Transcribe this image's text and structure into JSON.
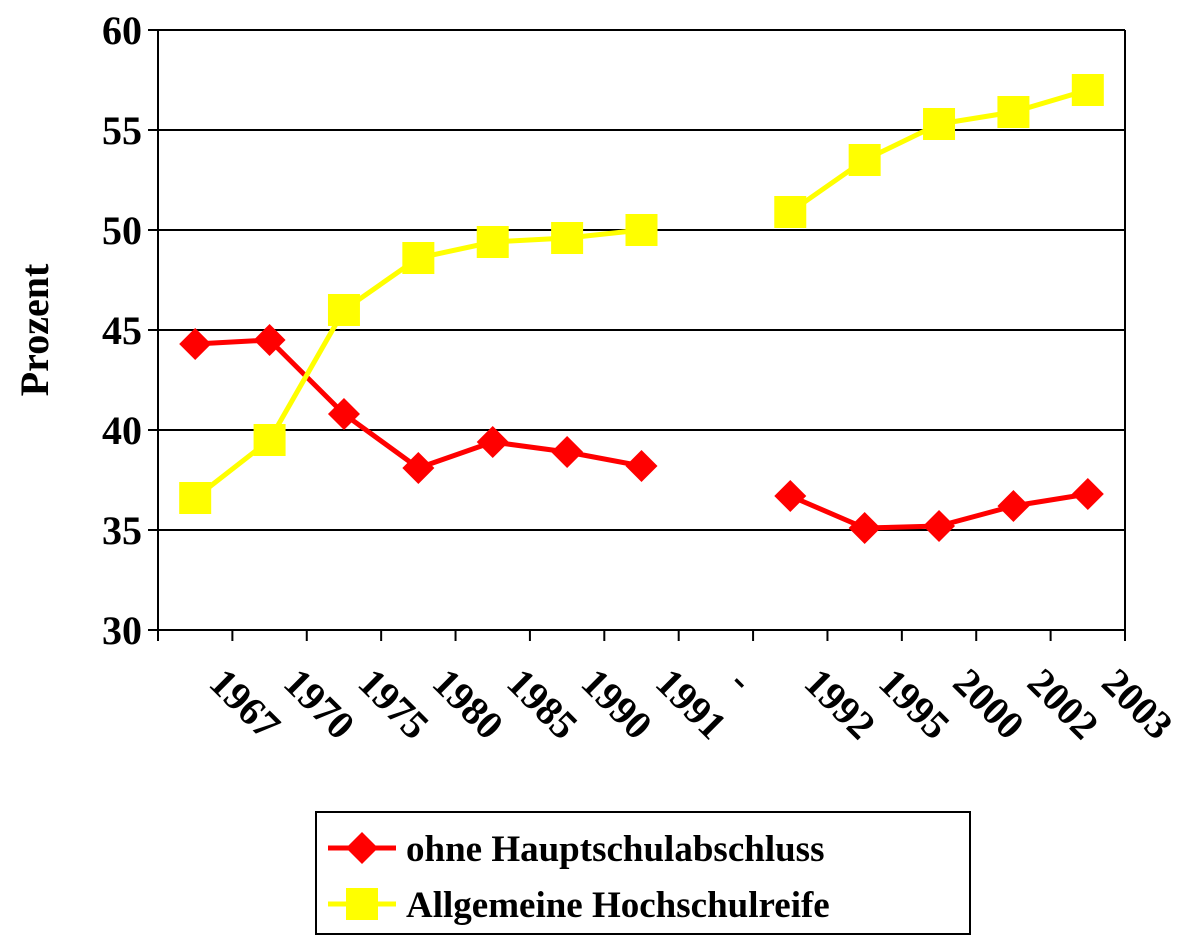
{
  "chart_data": {
    "type": "line",
    "title": "",
    "xlabel": "",
    "ylabel": "Prozent",
    "ylim": [
      30,
      60
    ],
    "yticks": [
      30,
      35,
      40,
      45,
      50,
      55,
      60
    ],
    "grid": true,
    "legend_position": "bottom",
    "categories": [
      "1967",
      "1970",
      "1975",
      "1980",
      "1985",
      "1990",
      "1991",
      "-",
      "1992",
      "1995",
      "2000",
      "2002",
      "2003"
    ],
    "series": [
      {
        "name": "ohne Hauptschulabschluss",
        "color": "#ff0000",
        "marker": "diamond",
        "values": [
          44.3,
          44.5,
          40.8,
          38.1,
          39.4,
          38.9,
          38.2,
          null,
          36.7,
          35.1,
          35.2,
          36.2,
          36.8
        ]
      },
      {
        "name": "Allgemeine Hochschulreife",
        "color": "#ffff00",
        "marker": "square",
        "values": [
          36.6,
          39.5,
          46.0,
          48.6,
          49.4,
          49.6,
          50.0,
          null,
          50.9,
          53.5,
          55.3,
          55.9,
          57.0
        ]
      }
    ]
  }
}
